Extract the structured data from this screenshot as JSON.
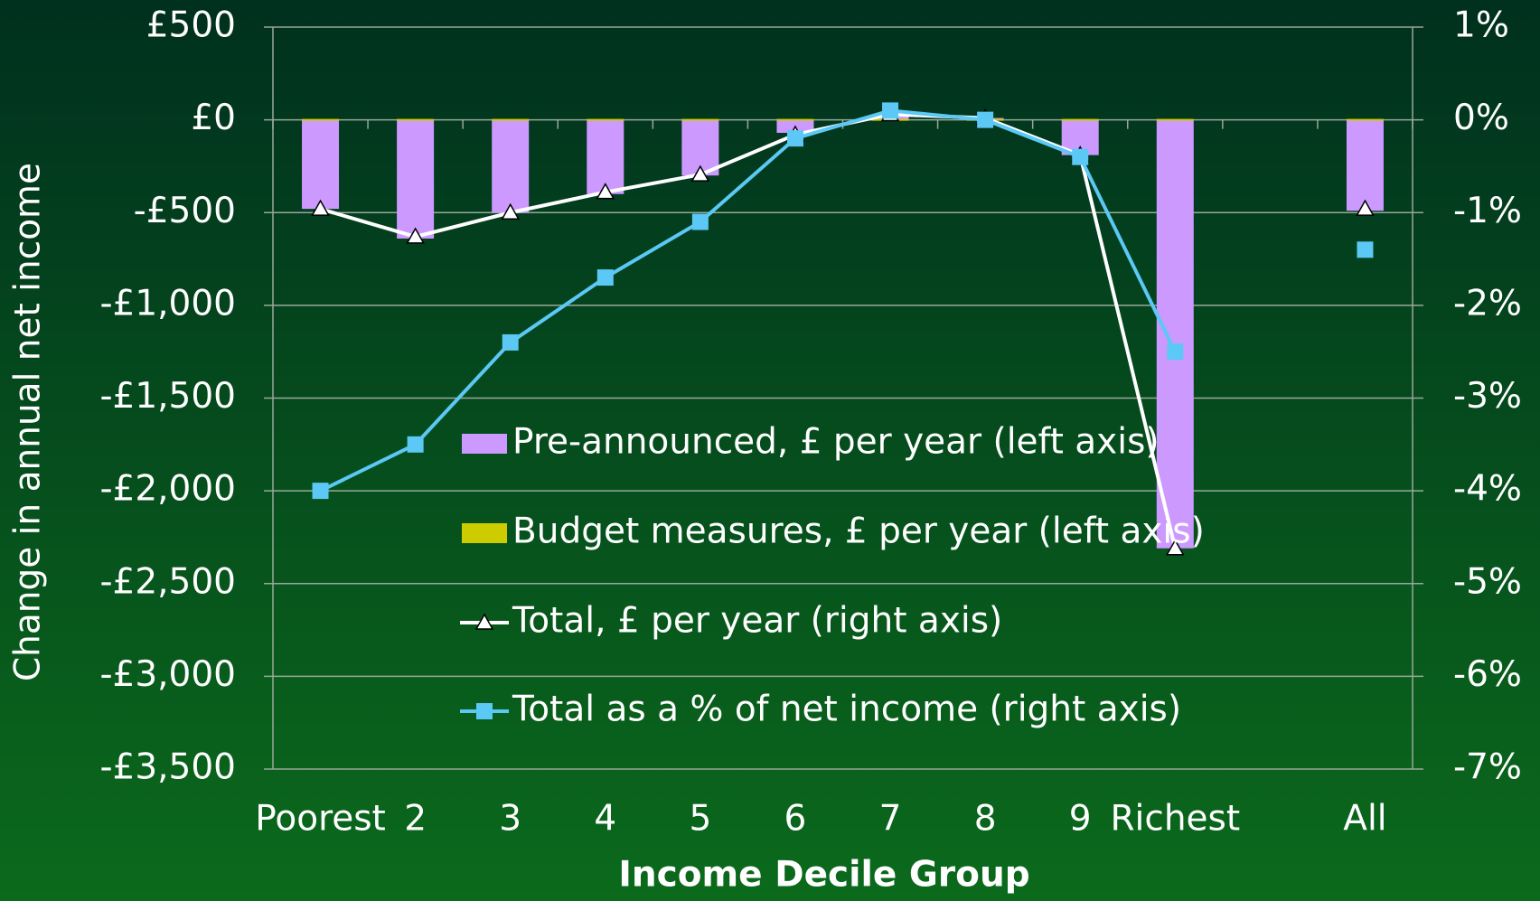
{
  "chart_data": {
    "type": "bar",
    "categories": [
      "Poorest",
      "2",
      "3",
      "4",
      "5",
      "6",
      "7",
      "8",
      "9",
      "Richest",
      null,
      "All"
    ],
    "series": [
      {
        "name": "Pre-announced, £ per year (left axis)",
        "color": "#cc99ff",
        "type": "bar",
        "values": [
          -480,
          -640,
          -500,
          -400,
          -300,
          -70,
          20,
          10,
          -190,
          -2310,
          null,
          -490
        ]
      },
      {
        "name": "Budget measures, £ per year (left axis)",
        "color": "#cccc00",
        "type": "bar",
        "values": [
          5,
          5,
          5,
          5,
          5,
          5,
          5,
          5,
          5,
          5,
          null,
          5
        ]
      },
      {
        "name": "Total, £ per year (right axis)",
        "color": "#ffffff",
        "type": "line",
        "marker": "triangle",
        "values": [
          -480,
          -630,
          -500,
          -390,
          -295,
          -80,
          30,
          10,
          -190,
          -2310,
          null,
          -480
        ]
      },
      {
        "name": "Total as a % of net income (right axis)",
        "color": "#5bc8f5",
        "type": "line",
        "marker": "square",
        "axis": "y2",
        "values": [
          -4.0,
          -3.5,
          -2.4,
          -1.7,
          -1.1,
          -0.2,
          0.1,
          0.0,
          -0.4,
          -2.5,
          null,
          -1.4
        ]
      }
    ],
    "xlabel": "Income Decile Group",
    "ylabel": "Change in annual net income",
    "ylim": [
      -3500,
      500
    ],
    "yticks": [
      {
        "value": 500,
        "label": "£500"
      },
      {
        "value": 0,
        "label": "£0"
      },
      {
        "value": -500,
        "label": "-£500"
      },
      {
        "value": -1000,
        "label": "-£1,000"
      },
      {
        "value": -1500,
        "label": "-£1,500"
      },
      {
        "value": -2000,
        "label": "-£2,000"
      },
      {
        "value": -2500,
        "label": "-£2,500"
      },
      {
        "value": -3000,
        "label": "-£3,000"
      },
      {
        "value": -3500,
        "label": "-£3,500"
      }
    ],
    "y2lim": [
      -7,
      1
    ],
    "y2ticks": [
      {
        "value": 1,
        "label": "1%"
      },
      {
        "value": 0,
        "label": "0%"
      },
      {
        "value": -1,
        "label": "-1%"
      },
      {
        "value": -2,
        "label": "-2%"
      },
      {
        "value": -3,
        "label": "-3%"
      },
      {
        "value": -4,
        "label": "-4%"
      },
      {
        "value": -5,
        "label": "-5%"
      },
      {
        "value": -6,
        "label": "-6%"
      },
      {
        "value": -7,
        "label": "-7%"
      }
    ],
    "grid": true
  }
}
